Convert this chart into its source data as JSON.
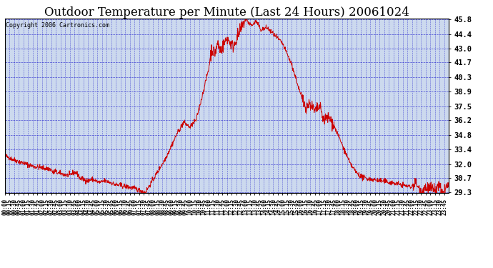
{
  "title": "Outdoor Temperature per Minute (Last 24 Hours) 20061024",
  "copyright": "Copyright 2006 Cartronics.com",
  "line_color": "#cc0000",
  "bg_color": "#ffffff",
  "plot_bg_color": "#ccd9ee",
  "grid_color": "#2222cc",
  "yticks": [
    29.3,
    30.7,
    32.0,
    33.4,
    34.8,
    36.2,
    37.5,
    38.9,
    40.3,
    41.7,
    43.0,
    44.4,
    45.8
  ],
  "ymin": 29.3,
  "ymax": 45.8,
  "title_fontsize": 12,
  "copyright_fontsize": 6,
  "xtick_fontsize": 5.5,
  "ytick_fontsize": 7.5
}
